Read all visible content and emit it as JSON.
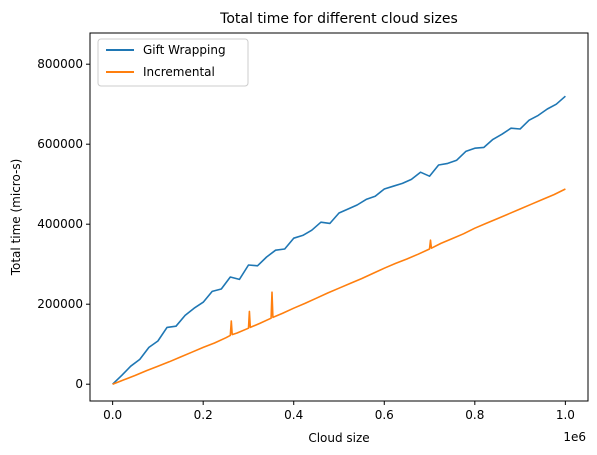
{
  "chart_data": {
    "type": "line",
    "title": "Total time for different cloud sizes",
    "xlabel": "Cloud size",
    "ylabel": "Total time (micro-s)",
    "x_offset_label": "1e6",
    "xlim": [
      -50000,
      1050000
    ],
    "ylim": [
      -42000,
      878000
    ],
    "x_ticks": [
      0,
      200000,
      400000,
      600000,
      800000,
      1000000
    ],
    "x_tick_labels": [
      "0.0",
      "0.2",
      "0.4",
      "0.6",
      "0.8",
      "1.0"
    ],
    "y_ticks": [
      0,
      200000,
      400000,
      600000,
      800000
    ],
    "y_tick_labels": [
      "0",
      "200000",
      "400000",
      "600000",
      "800000"
    ],
    "grid": false,
    "legend_position": "upper-left",
    "series": [
      {
        "name": "Gift Wrapping",
        "color": "#1f77b4",
        "x": [
          0,
          20000,
          40000,
          60000,
          80000,
          100000,
          120000,
          140000,
          160000,
          180000,
          200000,
          220000,
          240000,
          260000,
          280000,
          300000,
          320000,
          340000,
          360000,
          380000,
          400000,
          420000,
          440000,
          460000,
          480000,
          500000,
          520000,
          540000,
          560000,
          580000,
          600000,
          620000,
          640000,
          660000,
          680000,
          700000,
          720000,
          740000,
          760000,
          780000,
          800000,
          820000,
          840000,
          860000,
          880000,
          900000,
          920000,
          940000,
          960000,
          980000,
          1000000
        ],
        "y": [
          0,
          22000,
          45000,
          62000,
          92000,
          108000,
          142000,
          145000,
          172000,
          190000,
          205000,
          232000,
          238000,
          268000,
          262000,
          298000,
          296000,
          318000,
          335000,
          338000,
          365000,
          372000,
          385000,
          405000,
          402000,
          428000,
          438000,
          448000,
          462000,
          470000,
          488000,
          495000,
          502000,
          512000,
          530000,
          520000,
          548000,
          552000,
          560000,
          582000,
          590000,
          592000,
          612000,
          625000,
          640000,
          638000,
          660000,
          672000,
          688000,
          700000,
          720000
        ]
      },
      {
        "name": "Incremental",
        "color": "#ff7f0e",
        "x": [
          0,
          25000,
          50000,
          75000,
          100000,
          125000,
          150000,
          175000,
          200000,
          225000,
          250000,
          260000,
          262000,
          264000,
          275000,
          300000,
          302000,
          304000,
          325000,
          350000,
          352000,
          354000,
          375000,
          400000,
          425000,
          450000,
          475000,
          500000,
          525000,
          550000,
          575000,
          600000,
          625000,
          650000,
          675000,
          700000,
          702000,
          704000,
          725000,
          750000,
          775000,
          800000,
          825000,
          850000,
          875000,
          900000,
          925000,
          950000,
          975000,
          1000000
        ],
        "y": [
          0,
          11000,
          22000,
          34000,
          45000,
          56000,
          68000,
          80000,
          92000,
          103000,
          116000,
          122000,
          158000,
          124000,
          128000,
          140000,
          182000,
          142000,
          152000,
          165000,
          230000,
          167000,
          177000,
          190000,
          202000,
          215000,
          228000,
          240000,
          252000,
          264000,
          277000,
          290000,
          302000,
          313000,
          325000,
          338000,
          360000,
          340000,
          352000,
          364000,
          376000,
          390000,
          402000,
          414000,
          426000,
          438000,
          450000,
          462000,
          474000,
          488000
        ]
      }
    ]
  }
}
